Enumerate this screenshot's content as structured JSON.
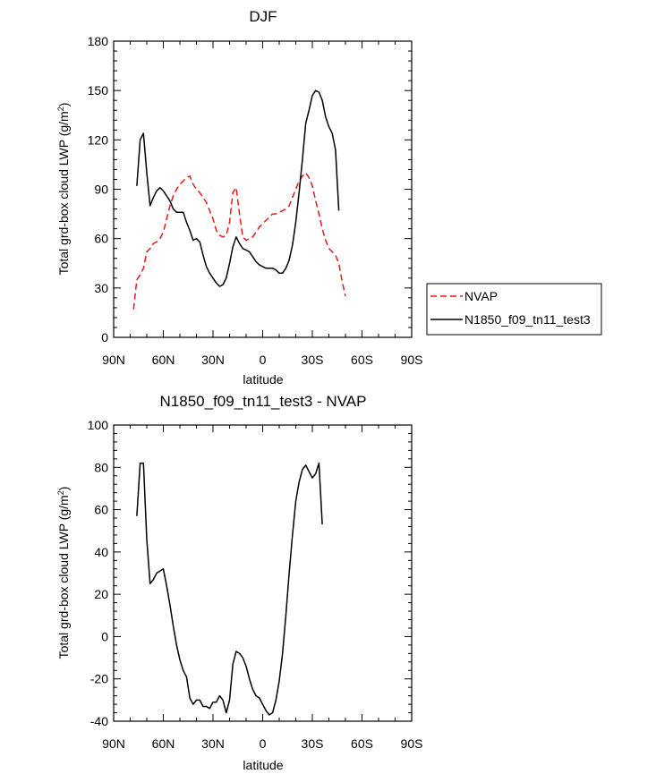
{
  "chart_data": [
    {
      "type": "line",
      "title": "DJF",
      "xlabel": "latitude",
      "ylabel": "Total grd-box cloud LWP (g/m²)",
      "ylabel_base": "Total grd-box cloud LWP (g/m",
      "ylabel_sup": "2",
      "ylabel_end": ")",
      "xlim": [
        90,
        -90
      ],
      "ylim": [
        0,
        180
      ],
      "xticks": [
        90,
        60,
        30,
        0,
        -30,
        -60,
        -90
      ],
      "xticklabels": [
        "90N",
        "60N",
        "30N",
        "0",
        "30S",
        "60S",
        "90S"
      ],
      "yticks": [
        0,
        30,
        60,
        90,
        120,
        150,
        180
      ],
      "yticklabels": [
        "0",
        "30",
        "60",
        "90",
        "120",
        "150",
        "180"
      ],
      "legend": {
        "placement": "right",
        "entries": [
          "NVAP",
          "N1850_f09_tn11_test3"
        ]
      },
      "series": [
        {
          "name": "NVAP",
          "color": "#e41a1c",
          "dashed": true,
          "points": [
            [
              78,
              17
            ],
            [
              76,
              35
            ],
            [
              74,
              38
            ],
            [
              72,
              42
            ],
            [
              70,
              52
            ],
            [
              68,
              54
            ],
            [
              66,
              57
            ],
            [
              64,
              58
            ],
            [
              62,
              60
            ],
            [
              60,
              64
            ],
            [
              58,
              72
            ],
            [
              56,
              80
            ],
            [
              54,
              86
            ],
            [
              52,
              90
            ],
            [
              50,
              93
            ],
            [
              48,
              95
            ],
            [
              46,
              97
            ],
            [
              44,
              98
            ],
            [
              42,
              93
            ],
            [
              40,
              90
            ],
            [
              38,
              88
            ],
            [
              36,
              85
            ],
            [
              34,
              82
            ],
            [
              32,
              77
            ],
            [
              30,
              72
            ],
            [
              28,
              65
            ],
            [
              26,
              62
            ],
            [
              24,
              61
            ],
            [
              22,
              62
            ],
            [
              20,
              70
            ],
            [
              18,
              88
            ],
            [
              16,
              91
            ],
            [
              14,
              75
            ],
            [
              12,
              61
            ],
            [
              10,
              59
            ],
            [
              8,
              60
            ],
            [
              6,
              61
            ],
            [
              4,
              64
            ],
            [
              2,
              67
            ],
            [
              0,
              69
            ],
            [
              -2,
              71
            ],
            [
              -4,
              73
            ],
            [
              -6,
              75
            ],
            [
              -8,
              75
            ],
            [
              -10,
              76
            ],
            [
              -12,
              77
            ],
            [
              -14,
              78
            ],
            [
              -16,
              80
            ],
            [
              -18,
              85
            ],
            [
              -20,
              90
            ],
            [
              -22,
              95
            ],
            [
              -24,
              98
            ],
            [
              -26,
              100
            ],
            [
              -28,
              97
            ],
            [
              -30,
              92
            ],
            [
              -32,
              83
            ],
            [
              -34,
              75
            ],
            [
              -36,
              66
            ],
            [
              -38,
              59
            ],
            [
              -40,
              54
            ],
            [
              -42,
              52
            ],
            [
              -44,
              50
            ],
            [
              -46,
              45
            ],
            [
              -48,
              34
            ],
            [
              -50,
              25
            ]
          ]
        },
        {
          "name": "N1850_f09_tn11_test3",
          "color": "#000000",
          "dashed": false,
          "points": [
            [
              76,
              92
            ],
            [
              74,
              120
            ],
            [
              72,
              124
            ],
            [
              70,
              100
            ],
            [
              68,
              80
            ],
            [
              66,
              85
            ],
            [
              64,
              89
            ],
            [
              62,
              91
            ],
            [
              60,
              89
            ],
            [
              58,
              86
            ],
            [
              56,
              83
            ],
            [
              54,
              78
            ],
            [
              52,
              76
            ],
            [
              50,
              76
            ],
            [
              48,
              76
            ],
            [
              46,
              70
            ],
            [
              44,
              65
            ],
            [
              42,
              59
            ],
            [
              40,
              60
            ],
            [
              38,
              58
            ],
            [
              36,
              50
            ],
            [
              34,
              43
            ],
            [
              32,
              39
            ],
            [
              30,
              36
            ],
            [
              28,
              33
            ],
            [
              26,
              31
            ],
            [
              24,
              32
            ],
            [
              22,
              36
            ],
            [
              20,
              45
            ],
            [
              18,
              55
            ],
            [
              16,
              61
            ],
            [
              14,
              57
            ],
            [
              12,
              54
            ],
            [
              10,
              53
            ],
            [
              8,
              52
            ],
            [
              6,
              49
            ],
            [
              4,
              46
            ],
            [
              2,
              44
            ],
            [
              0,
              43
            ],
            [
              -2,
              42
            ],
            [
              -4,
              42
            ],
            [
              -6,
              42
            ],
            [
              -8,
              41
            ],
            [
              -10,
              39
            ],
            [
              -12,
              39
            ],
            [
              -14,
              42
            ],
            [
              -16,
              47
            ],
            [
              -18,
              56
            ],
            [
              -20,
              70
            ],
            [
              -22,
              88
            ],
            [
              -24,
              108
            ],
            [
              -26,
              130
            ],
            [
              -28,
              138
            ],
            [
              -30,
              147
            ],
            [
              -32,
              150
            ],
            [
              -34,
              149
            ],
            [
              -36,
              144
            ],
            [
              -38,
              134
            ],
            [
              -40,
              128
            ],
            [
              -42,
              124
            ],
            [
              -44,
              114
            ],
            [
              -46,
              77
            ]
          ]
        }
      ]
    },
    {
      "type": "line",
      "title": "N1850_f09_tn11_test3 - NVAP",
      "xlabel": "latitude",
      "ylabel": "Total grd-box cloud LWP (g/m²)",
      "ylabel_base": "Total grd-box cloud LWP (g/m",
      "ylabel_sup": "2",
      "ylabel_end": ")",
      "xlim": [
        90,
        -90
      ],
      "ylim": [
        -40,
        100
      ],
      "xticks": [
        90,
        60,
        30,
        0,
        -30,
        -60,
        -90
      ],
      "xticklabels": [
        "90N",
        "60N",
        "30N",
        "0",
        "30S",
        "60S",
        "90S"
      ],
      "yticks": [
        -40,
        -20,
        0,
        20,
        40,
        60,
        80,
        100
      ],
      "yticklabels": [
        "-40",
        "-20",
        "0",
        "20",
        "40",
        "60",
        "80",
        "100"
      ],
      "series": [
        {
          "name": "N1850_f09_tn11_test3 - NVAP",
          "color": "#000000",
          "dashed": false,
          "points": [
            [
              76,
              57
            ],
            [
              74,
              82
            ],
            [
              72,
              82
            ],
            [
              70,
              46
            ],
            [
              68,
              25
            ],
            [
              66,
              27
            ],
            [
              64,
              30
            ],
            [
              62,
              31
            ],
            [
              60,
              32
            ],
            [
              58,
              24
            ],
            [
              56,
              15
            ],
            [
              54,
              5
            ],
            [
              52,
              -4
            ],
            [
              50,
              -11
            ],
            [
              48,
              -16
            ],
            [
              46,
              -19
            ],
            [
              44,
              -29
            ],
            [
              42,
              -32
            ],
            [
              40,
              -30
            ],
            [
              38,
              -30
            ],
            [
              36,
              -33
            ],
            [
              34,
              -33
            ],
            [
              32,
              -34
            ],
            [
              30,
              -31
            ],
            [
              28,
              -31
            ],
            [
              26,
              -28
            ],
            [
              24,
              -30
            ],
            [
              22,
              -36
            ],
            [
              20,
              -30
            ],
            [
              18,
              -13
            ],
            [
              16,
              -7
            ],
            [
              14,
              -8
            ],
            [
              12,
              -10
            ],
            [
              10,
              -14
            ],
            [
              8,
              -20
            ],
            [
              6,
              -25
            ],
            [
              4,
              -28
            ],
            [
              2,
              -29
            ],
            [
              0,
              -32
            ],
            [
              -2,
              -35
            ],
            [
              -4,
              -37
            ],
            [
              -6,
              -36
            ],
            [
              -8,
              -30
            ],
            [
              -10,
              -21
            ],
            [
              -12,
              -8
            ],
            [
              -14,
              10
            ],
            [
              -16,
              30
            ],
            [
              -18,
              48
            ],
            [
              -20,
              64
            ],
            [
              -22,
              73
            ],
            [
              -24,
              79
            ],
            [
              -26,
              81
            ],
            [
              -28,
              78
            ],
            [
              -30,
              75
            ],
            [
              -32,
              77
            ],
            [
              -34,
              82
            ],
            [
              -36,
              53
            ]
          ]
        }
      ]
    }
  ]
}
